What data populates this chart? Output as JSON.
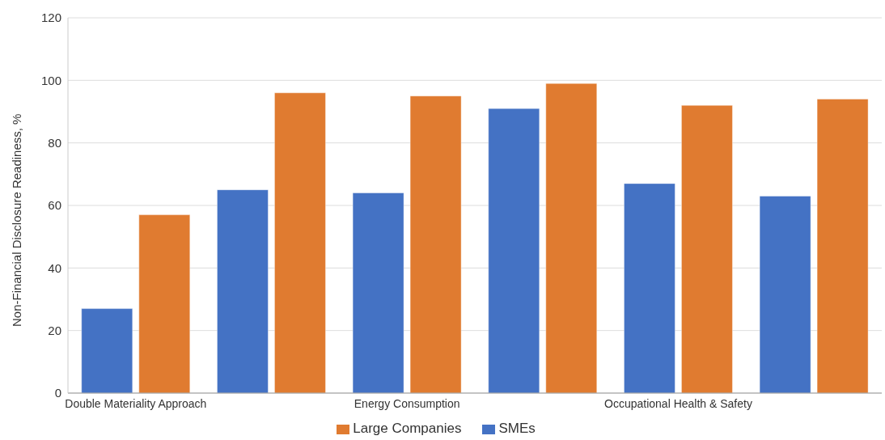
{
  "chart_data": {
    "type": "bar",
    "ylabel": "Non-Financial Disclosure Readiness, %",
    "categories": [
      "Double Materiality Approach",
      null,
      "Energy Consumption",
      null,
      "Occupational Health & Safety",
      null
    ],
    "series": [
      {
        "name": "SMEs",
        "color": "#4472c4",
        "values": [
          27,
          65,
          64,
          91,
          67,
          63
        ]
      },
      {
        "name": "Large Companies",
        "color": "#e07b30",
        "values": [
          57,
          96,
          95,
          99,
          92,
          94
        ]
      }
    ],
    "ylim": [
      0,
      120
    ],
    "yticks": [
      0,
      20,
      40,
      60,
      80,
      100,
      120
    ],
    "grid": "y",
    "legend": "bottom"
  }
}
